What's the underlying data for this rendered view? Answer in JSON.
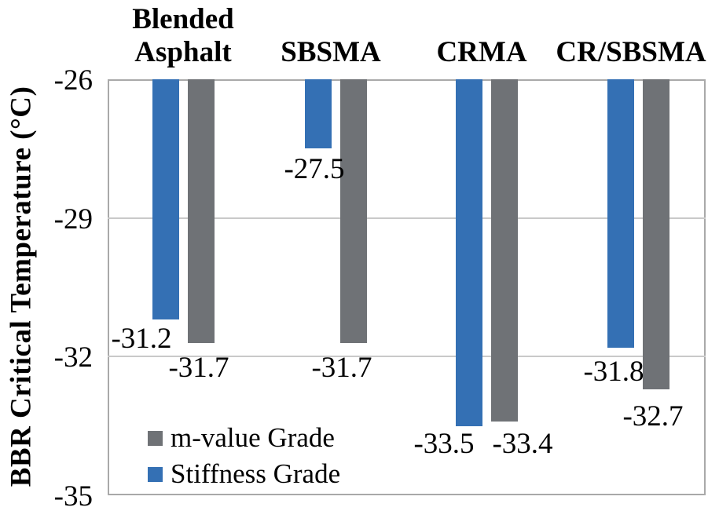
{
  "chart_data": {
    "type": "bar",
    "title": "",
    "ylabel": "BBR Critical Temperature (°C)",
    "xlabel": "",
    "categories": [
      "Blended Asphalt",
      "SBSMA",
      "CRMA",
      "CR/SBSMA"
    ],
    "category_lines": [
      [
        "Blended",
        "Asphalt"
      ],
      [
        "SBSMA"
      ],
      [
        "CRMA"
      ],
      [
        "CR/SBSMA"
      ]
    ],
    "series": [
      {
        "name": "Stiffness Grade",
        "color": "#3470B4",
        "values": [
          -31.2,
          -27.5,
          -33.5,
          -31.8
        ],
        "labels": [
          "-31.2",
          "-27.5",
          "-33.5",
          "-31.8"
        ]
      },
      {
        "name": "m-value Grade",
        "color": "#6F7276",
        "values": [
          -31.7,
          -31.7,
          -33.4,
          -32.7
        ],
        "labels": [
          "-31.7",
          "-31.7",
          "-33.4",
          "-32.7"
        ]
      }
    ],
    "bars_anchor": -26,
    "ylim": [
      -35,
      -26
    ],
    "yticks": [
      "-26",
      "-29",
      "-32",
      "-35"
    ],
    "ytick_values": [
      -26,
      -29,
      -32,
      -35
    ],
    "grid": "horizontal",
    "legend": {
      "position": "inside-bottom-left",
      "items": [
        {
          "label": "m-value Grade",
          "color": "#6F7276"
        },
        {
          "label": "Stiffness Grade",
          "color": "#3470B4"
        }
      ]
    },
    "colors": {
      "axis_border": "#A9A9A9",
      "gridline": "#C9C9C9",
      "text": "#000000",
      "background": "#FFFFFF"
    }
  }
}
